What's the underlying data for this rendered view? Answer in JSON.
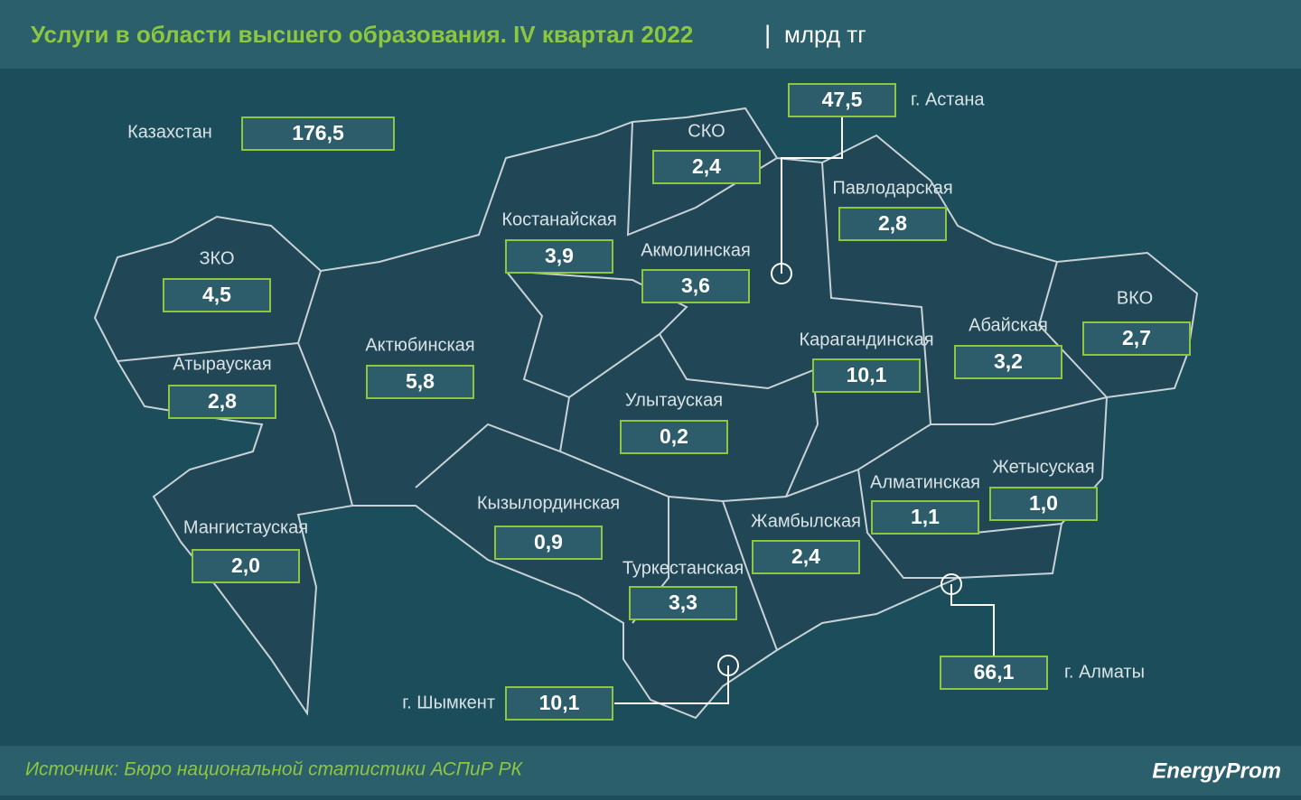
{
  "header": {
    "title": "Услуги в области высшего образования. IV квартал 2022",
    "separator": "|",
    "unit": "млрд тг"
  },
  "total": {
    "name": "Казахстан",
    "value": "176,5"
  },
  "regions": [
    {
      "name": "г. Астана",
      "value": "47,5"
    },
    {
      "name": "СКО",
      "value": "2,4"
    },
    {
      "name": "Павлодарская",
      "value": "2,8"
    },
    {
      "name": "Костанайская",
      "value": "3,9"
    },
    {
      "name": "Акмолинская",
      "value": "3,6"
    },
    {
      "name": "ЗКО",
      "value": "4,5"
    },
    {
      "name": "ВКО",
      "value": "2,7"
    },
    {
      "name": "Абайская",
      "value": "3,2"
    },
    {
      "name": "Актюбинская",
      "value": "5,8"
    },
    {
      "name": "Карагандинская",
      "value": "10,1"
    },
    {
      "name": "Атырауская",
      "value": "2,8"
    },
    {
      "name": "Улытауская",
      "value": "0,2"
    },
    {
      "name": "Жетысуская",
      "value": "1,0"
    },
    {
      "name": "Алматинская",
      "value": "1,1"
    },
    {
      "name": "Кызылординская",
      "value": "0,9"
    },
    {
      "name": "Жамбылская",
      "value": "2,4"
    },
    {
      "name": "Мангистауская",
      "value": "2,0"
    },
    {
      "name": "Туркестанская",
      "value": "3,3"
    },
    {
      "name": "г. Алматы",
      "value": "66,1"
    },
    {
      "name": "г. Шымкент",
      "value": "10,1"
    }
  ],
  "footer": {
    "source": "Источник: Бюро национальной статистики АСПиР РК",
    "logo": "EnergyProm"
  }
}
